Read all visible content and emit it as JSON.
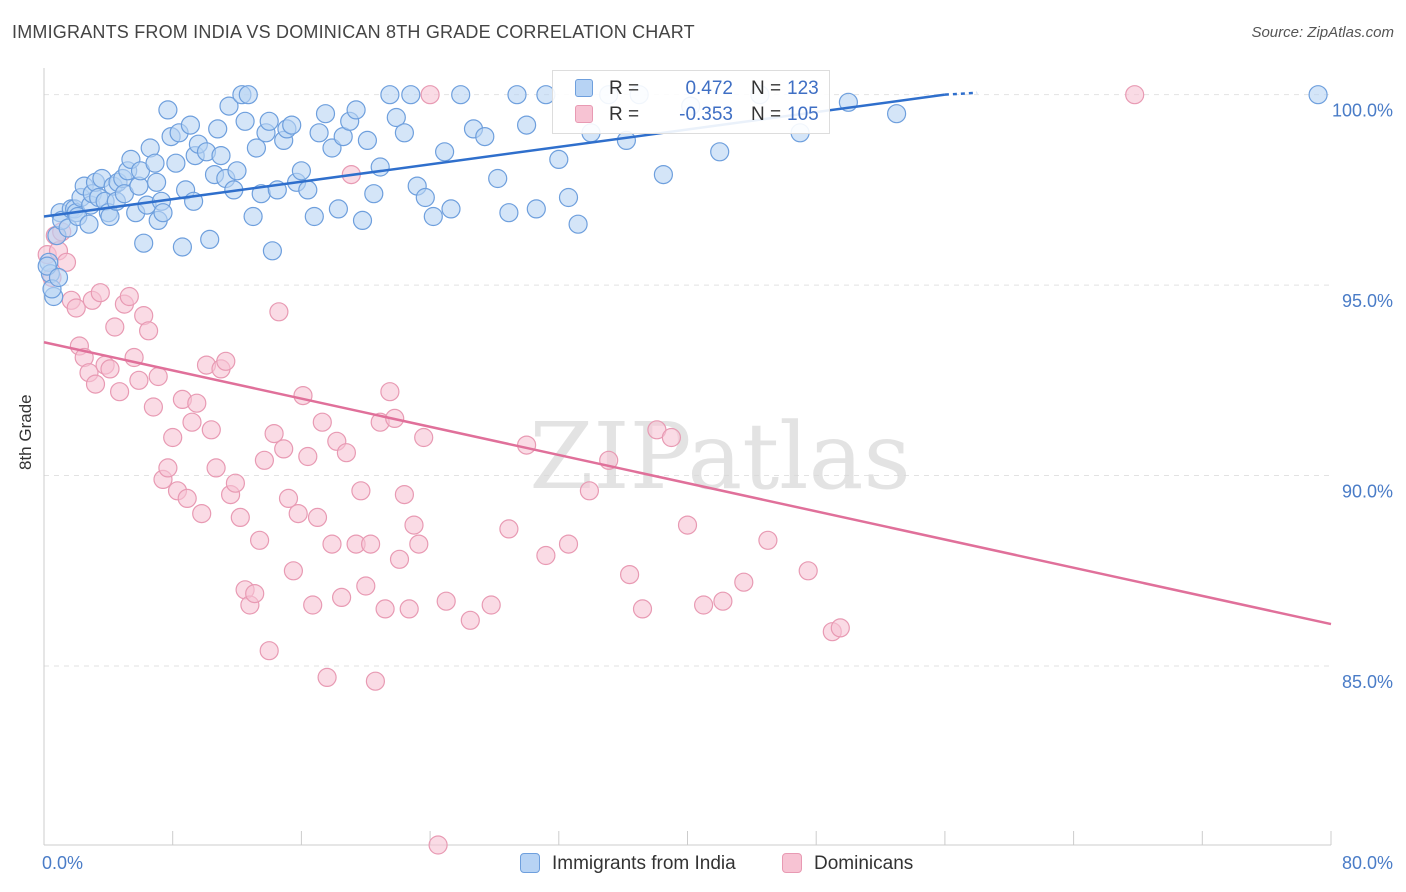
{
  "title": "IMMIGRANTS FROM INDIA VS DOMINICAN 8TH GRADE CORRELATION CHART",
  "source": "Source: ZipAtlas.com",
  "watermark": "ZIPatlas",
  "colors": {
    "india_fill": "#b7d3f4",
    "india_stroke": "#6e9fdd",
    "india_line": "#2f6fcc",
    "dom_fill": "#f7c3d3",
    "dom_stroke": "#e89ab3",
    "dom_line": "#e0709a",
    "tick_text": "#4a7cc7"
  },
  "stats": [
    {
      "r_label": "R =",
      "r_value": "0.472",
      "n_label": "N =",
      "n_value": "123"
    },
    {
      "r_label": "R =",
      "r_value": "-0.353",
      "n_label": "N =",
      "n_value": "105"
    }
  ],
  "legend": [
    "Immigrants from India",
    "Dominicans"
  ],
  "chart_data": {
    "type": "scatter",
    "xlabel": "",
    "ylabel": "8th Grade",
    "xlim": [
      0,
      80
    ],
    "ylim": [
      80.3,
      100.7
    ],
    "x_tick_labels": [
      "0.0%",
      "80.0%"
    ],
    "y_ticks": [
      100,
      95,
      90,
      85
    ],
    "y_tick_labels": [
      "100.0%",
      "95.0%",
      "90.0%",
      "85.0%"
    ],
    "grid": true,
    "series": [
      {
        "name": "Immigrants from India",
        "trend": [
          [
            0,
            96.8
          ],
          [
            56,
            100.0
          ]
        ],
        "points": [
          [
            0.3,
            95.6
          ],
          [
            0.4,
            95.3
          ],
          [
            0.6,
            94.7
          ],
          [
            0.8,
            96.3
          ],
          [
            1.0,
            96.9
          ],
          [
            1.1,
            96.7
          ],
          [
            1.5,
            96.5
          ],
          [
            1.7,
            97.0
          ],
          [
            1.9,
            97.0
          ],
          [
            2.0,
            96.9
          ],
          [
            2.1,
            96.8
          ],
          [
            2.3,
            97.3
          ],
          [
            2.5,
            97.6
          ],
          [
            2.8,
            96.6
          ],
          [
            2.9,
            97.1
          ],
          [
            3.0,
            97.4
          ],
          [
            3.2,
            97.7
          ],
          [
            3.4,
            97.3
          ],
          [
            3.6,
            97.8
          ],
          [
            3.8,
            97.2
          ],
          [
            4.0,
            96.9
          ],
          [
            4.1,
            96.8
          ],
          [
            4.3,
            97.6
          ],
          [
            4.5,
            97.2
          ],
          [
            4.6,
            97.7
          ],
          [
            4.9,
            97.8
          ],
          [
            5.0,
            97.4
          ],
          [
            5.2,
            98.0
          ],
          [
            5.4,
            98.3
          ],
          [
            5.7,
            96.9
          ],
          [
            5.9,
            97.6
          ],
          [
            6.0,
            98.0
          ],
          [
            6.2,
            96.1
          ],
          [
            6.4,
            97.1
          ],
          [
            6.6,
            98.6
          ],
          [
            6.9,
            98.2
          ],
          [
            7.0,
            97.7
          ],
          [
            7.1,
            96.7
          ],
          [
            7.3,
            97.2
          ],
          [
            7.4,
            96.9
          ],
          [
            7.7,
            99.6
          ],
          [
            7.9,
            98.9
          ],
          [
            8.2,
            98.2
          ],
          [
            8.4,
            99.0
          ],
          [
            8.6,
            96.0
          ],
          [
            8.8,
            97.5
          ],
          [
            9.1,
            99.2
          ],
          [
            9.3,
            97.2
          ],
          [
            9.4,
            98.4
          ],
          [
            9.6,
            98.7
          ],
          [
            10.1,
            98.5
          ],
          [
            10.3,
            96.2
          ],
          [
            10.6,
            97.9
          ],
          [
            10.8,
            99.1
          ],
          [
            11.0,
            98.4
          ],
          [
            11.3,
            97.8
          ],
          [
            11.5,
            99.7
          ],
          [
            11.8,
            97.5
          ],
          [
            12.0,
            98.0
          ],
          [
            12.3,
            100.0
          ],
          [
            12.5,
            99.3
          ],
          [
            12.7,
            100.0
          ],
          [
            13.0,
            96.8
          ],
          [
            13.2,
            98.6
          ],
          [
            13.5,
            97.4
          ],
          [
            13.8,
            99.0
          ],
          [
            14.0,
            99.3
          ],
          [
            14.2,
            95.9
          ],
          [
            14.5,
            97.5
          ],
          [
            14.9,
            98.8
          ],
          [
            15.1,
            99.1
          ],
          [
            15.4,
            99.2
          ],
          [
            15.7,
            97.7
          ],
          [
            16.0,
            98.0
          ],
          [
            16.4,
            97.5
          ],
          [
            16.8,
            96.8
          ],
          [
            17.1,
            99.0
          ],
          [
            17.5,
            99.5
          ],
          [
            17.9,
            98.6
          ],
          [
            18.3,
            97.0
          ],
          [
            18.6,
            98.9
          ],
          [
            19.0,
            99.3
          ],
          [
            19.4,
            99.6
          ],
          [
            19.8,
            96.7
          ],
          [
            20.1,
            98.8
          ],
          [
            20.5,
            97.4
          ],
          [
            20.9,
            98.1
          ],
          [
            21.5,
            100.0
          ],
          [
            21.9,
            99.4
          ],
          [
            22.4,
            99.0
          ],
          [
            22.8,
            100.0
          ],
          [
            23.2,
            97.6
          ],
          [
            23.7,
            97.3
          ],
          [
            24.2,
            96.8
          ],
          [
            24.9,
            98.5
          ],
          [
            25.3,
            97.0
          ],
          [
            25.9,
            100.0
          ],
          [
            26.7,
            99.1
          ],
          [
            27.4,
            98.9
          ],
          [
            28.2,
            97.8
          ],
          [
            28.9,
            96.9
          ],
          [
            29.4,
            100.0
          ],
          [
            30.0,
            99.2
          ],
          [
            30.6,
            97.0
          ],
          [
            31.2,
            100.0
          ],
          [
            32.0,
            98.3
          ],
          [
            32.6,
            97.3
          ],
          [
            33.2,
            96.6
          ],
          [
            34.0,
            99.0
          ],
          [
            35.1,
            100.0
          ],
          [
            36.2,
            98.8
          ],
          [
            37.0,
            100.0
          ],
          [
            38.5,
            97.9
          ],
          [
            40.2,
            99.7
          ],
          [
            42.0,
            98.5
          ],
          [
            44.5,
            100.0
          ],
          [
            47.0,
            99.0
          ],
          [
            50.0,
            99.8
          ],
          [
            53.0,
            99.5
          ],
          [
            79.2,
            100.0
          ],
          [
            0.2,
            95.5
          ],
          [
            0.5,
            94.9
          ],
          [
            0.9,
            95.2
          ]
        ]
      },
      {
        "name": "Dominicans",
        "trend": [
          [
            0,
            93.5
          ],
          [
            80,
            86.1
          ]
        ],
        "points": [
          [
            0.2,
            95.8
          ],
          [
            0.5,
            95.2
          ],
          [
            0.7,
            96.3
          ],
          [
            0.9,
            95.9
          ],
          [
            1.1,
            96.4
          ],
          [
            1.4,
            95.6
          ],
          [
            1.7,
            94.6
          ],
          [
            2.0,
            94.4
          ],
          [
            2.2,
            93.4
          ],
          [
            2.5,
            93.1
          ],
          [
            2.8,
            92.7
          ],
          [
            3.0,
            94.6
          ],
          [
            3.2,
            92.4
          ],
          [
            3.5,
            94.8
          ],
          [
            3.8,
            92.9
          ],
          [
            4.1,
            92.8
          ],
          [
            4.4,
            93.9
          ],
          [
            4.7,
            92.2
          ],
          [
            5.0,
            94.5
          ],
          [
            5.3,
            94.7
          ],
          [
            5.6,
            93.1
          ],
          [
            5.9,
            92.5
          ],
          [
            6.2,
            94.2
          ],
          [
            6.5,
            93.8
          ],
          [
            6.8,
            91.8
          ],
          [
            7.1,
            92.6
          ],
          [
            7.4,
            89.9
          ],
          [
            7.7,
            90.2
          ],
          [
            8.0,
            91.0
          ],
          [
            8.3,
            89.6
          ],
          [
            8.6,
            92.0
          ],
          [
            8.9,
            89.4
          ],
          [
            9.2,
            91.4
          ],
          [
            9.5,
            91.9
          ],
          [
            9.8,
            89.0
          ],
          [
            10.1,
            92.9
          ],
          [
            10.4,
            91.2
          ],
          [
            10.7,
            90.2
          ],
          [
            11.0,
            92.8
          ],
          [
            11.3,
            93.0
          ],
          [
            11.6,
            89.5
          ],
          [
            11.9,
            89.8
          ],
          [
            12.2,
            88.9
          ],
          [
            12.5,
            87.0
          ],
          [
            12.8,
            86.6
          ],
          [
            13.1,
            86.9
          ],
          [
            13.4,
            88.3
          ],
          [
            13.7,
            90.4
          ],
          [
            14.0,
            85.4
          ],
          [
            14.3,
            91.1
          ],
          [
            14.6,
            94.3
          ],
          [
            14.9,
            90.7
          ],
          [
            15.2,
            89.4
          ],
          [
            15.5,
            87.5
          ],
          [
            15.8,
            89.0
          ],
          [
            16.1,
            92.1
          ],
          [
            16.4,
            90.5
          ],
          [
            16.7,
            86.6
          ],
          [
            17.0,
            88.9
          ],
          [
            17.3,
            91.4
          ],
          [
            17.6,
            84.7
          ],
          [
            17.9,
            88.2
          ],
          [
            18.2,
            90.9
          ],
          [
            18.5,
            86.8
          ],
          [
            18.8,
            90.6
          ],
          [
            19.1,
            97.9
          ],
          [
            19.4,
            88.2
          ],
          [
            19.7,
            89.6
          ],
          [
            20.0,
            87.1
          ],
          [
            20.3,
            88.2
          ],
          [
            20.6,
            84.6
          ],
          [
            20.9,
            91.4
          ],
          [
            21.2,
            86.5
          ],
          [
            21.5,
            92.2
          ],
          [
            21.8,
            91.5
          ],
          [
            22.1,
            87.8
          ],
          [
            22.4,
            89.5
          ],
          [
            22.7,
            86.5
          ],
          [
            23.0,
            88.7
          ],
          [
            23.3,
            88.2
          ],
          [
            23.6,
            91.0
          ],
          [
            24.0,
            100.0
          ],
          [
            24.5,
            80.3
          ],
          [
            25.0,
            86.7
          ],
          [
            26.5,
            86.2
          ],
          [
            27.8,
            86.6
          ],
          [
            28.9,
            88.6
          ],
          [
            30.0,
            90.8
          ],
          [
            31.2,
            87.9
          ],
          [
            32.6,
            88.2
          ],
          [
            33.9,
            89.6
          ],
          [
            35.1,
            90.4
          ],
          [
            36.4,
            87.4
          ],
          [
            37.2,
            86.5
          ],
          [
            38.1,
            91.2
          ],
          [
            39.0,
            91.0
          ],
          [
            40.0,
            88.7
          ],
          [
            41.0,
            86.6
          ],
          [
            42.2,
            86.7
          ],
          [
            43.5,
            87.2
          ],
          [
            45.0,
            88.3
          ],
          [
            47.5,
            87.5
          ],
          [
            49.0,
            85.9
          ],
          [
            49.5,
            86.0
          ],
          [
            67.8,
            100.0
          ]
        ]
      }
    ]
  }
}
